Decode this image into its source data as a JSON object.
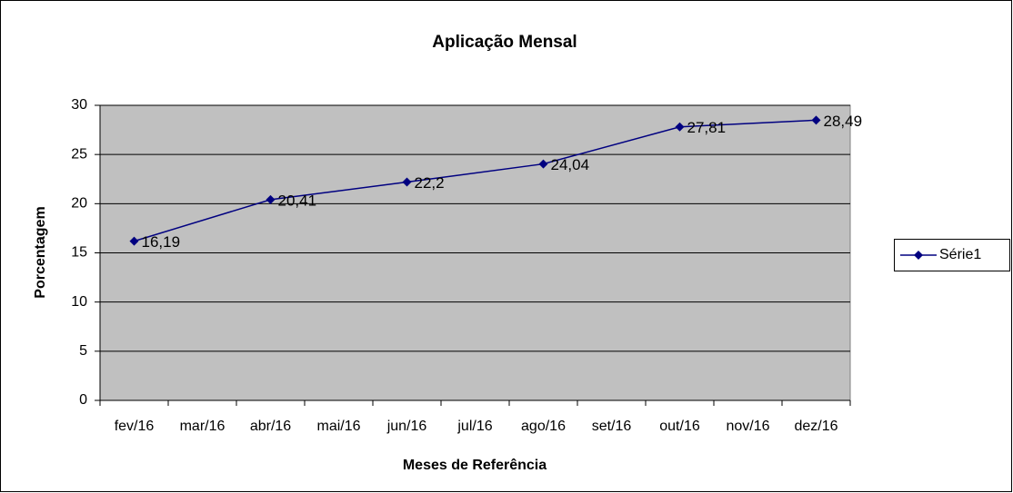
{
  "chart_data": {
    "type": "line",
    "title": "Aplicação Mensal",
    "xlabel": "Meses de Referência",
    "ylabel": "Porcentagem",
    "xticks": [
      "fev/16",
      "mar/16",
      "abr/16",
      "mai/16",
      "jun/16",
      "jul/16",
      "ago/16",
      "set/16",
      "out/16",
      "nov/16",
      "dez/16"
    ],
    "series": [
      {
        "name": "Série1",
        "color": "#000080",
        "x": [
          "fev/16",
          "abr/16",
          "jun/16",
          "ago/16",
          "out/16",
          "dez/16"
        ],
        "values": [
          16.19,
          20.41,
          22.2,
          24.04,
          27.81,
          28.49
        ],
        "value_labels": [
          "16,19",
          "20,41",
          "22,2",
          "24,04",
          "27,81",
          "28,49"
        ]
      }
    ],
    "ylim": [
      0,
      30
    ],
    "yticks": [
      0,
      5,
      10,
      15,
      20,
      25,
      30
    ],
    "grid": true,
    "legend": "right"
  }
}
